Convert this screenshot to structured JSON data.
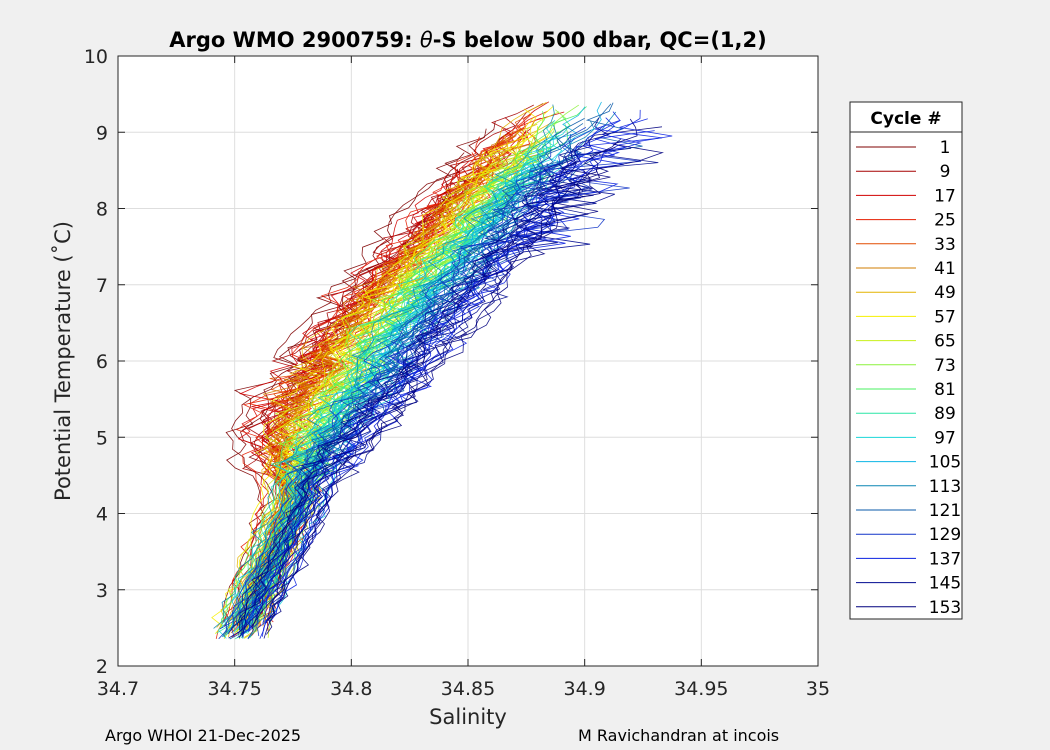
{
  "chart_data": {
    "type": "line",
    "title_prefix": "Argo WMO 2900759: ",
    "title_theta": "θ",
    "title_suffix": "-S below 500 dbar,  QC=(1,2)",
    "xlabel": "Salinity",
    "ylabel": "Potential Temperature (˚C)",
    "xlim": [
      34.7,
      35.0
    ],
    "ylim": [
      2,
      10
    ],
    "xticks": [
      34.7,
      34.75,
      34.8,
      34.85,
      34.9,
      34.95,
      35.0
    ],
    "xtick_labels": [
      "34.7",
      "34.75",
      "34.8",
      "34.85",
      "34.9",
      "34.95",
      "35"
    ],
    "yticks": [
      2,
      3,
      4,
      5,
      6,
      7,
      8,
      9,
      10
    ],
    "ytick_labels": [
      "2",
      "3",
      "4",
      "5",
      "6",
      "7",
      "8",
      "9",
      "10"
    ],
    "grid": true,
    "legend": {
      "title": "Cycle #",
      "placement": "outside-right",
      "entries": [
        "1",
        "9",
        "17",
        "25",
        "33",
        "41",
        "49",
        "57",
        "65",
        "73",
        "81",
        "89",
        "97",
        "105",
        "113",
        "121",
        "129",
        "137",
        "145",
        "153"
      ],
      "colors": [
        "#7f0000",
        "#a60000",
        "#d10000",
        "#e41d00",
        "#e24c00",
        "#d27e00",
        "#e4b400",
        "#f6f000",
        "#c8f01a",
        "#8cf23c",
        "#4af062",
        "#2ae6a6",
        "#1ad6d8",
        "#0cb4e4",
        "#0a86b4",
        "#0a5aa8",
        "#1034c8",
        "#0a20e0",
        "#000a90",
        "#00007f"
      ]
    },
    "series_description": "Potential temperature vs salinity profiles for cycles 1-153 below 500 dbar; curves run from about (34.75, 2.4) up to about (34.95, 9.4), early cycles red, later cycles blue."
  },
  "footer": {
    "left": "Argo WHOI 21-Dec-2025",
    "right": "M Ravichandran at incois"
  }
}
